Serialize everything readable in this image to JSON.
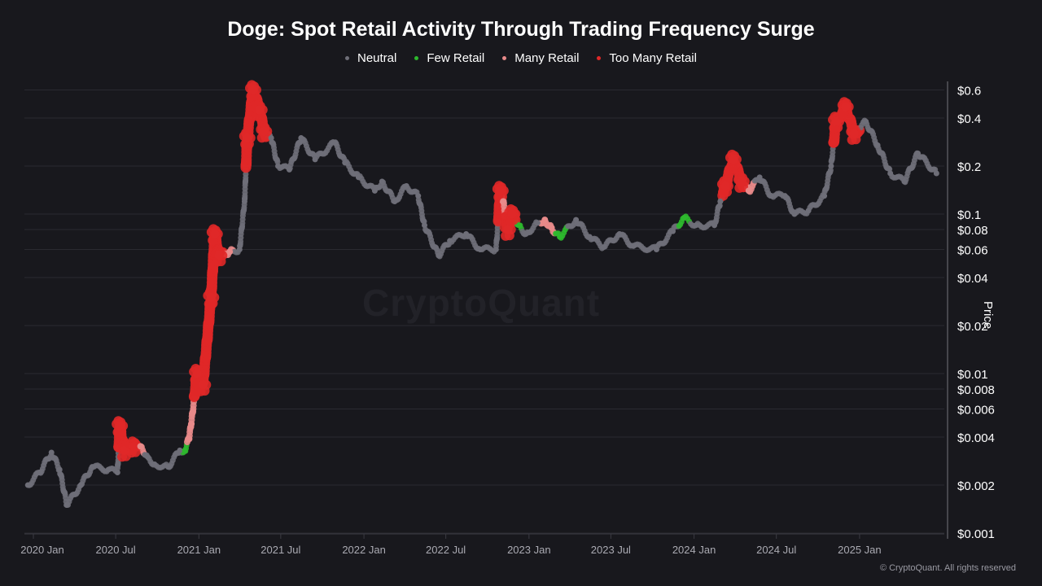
{
  "chart_data": {
    "type": "scatter",
    "title": "Doge: Spot Retail Activity Through Trading Frequency Surge",
    "ylabel": "Price",
    "xlabel": "",
    "y_scale": "log",
    "ylim": [
      0.001,
      0.65
    ],
    "xlim": [
      "2019-12-10",
      "2025-06-25"
    ],
    "grid": true,
    "legend_position": "top",
    "legend": [
      {
        "key": "neutral",
        "label": "Neutral",
        "color": "#6e6e78"
      },
      {
        "key": "few",
        "label": "Few Retail",
        "color": "#2db82d"
      },
      {
        "key": "many",
        "label": "Many Retail",
        "color": "#e88a8a"
      },
      {
        "key": "too_many",
        "label": "Too Many Retail",
        "color": "#e02828"
      }
    ],
    "y_ticks": [
      {
        "value": 0.6,
        "label": "$0.6"
      },
      {
        "value": 0.4,
        "label": "$0.4"
      },
      {
        "value": 0.2,
        "label": "$0.2"
      },
      {
        "value": 0.1,
        "label": "$0.1"
      },
      {
        "value": 0.08,
        "label": "$0.08"
      },
      {
        "value": 0.06,
        "label": "$0.06"
      },
      {
        "value": 0.04,
        "label": "$0.04"
      },
      {
        "value": 0.02,
        "label": "$0.02"
      },
      {
        "value": 0.01,
        "label": "$0.01"
      },
      {
        "value": 0.008,
        "label": "$0.008"
      },
      {
        "value": 0.006,
        "label": "$0.006"
      },
      {
        "value": 0.004,
        "label": "$0.004"
      },
      {
        "value": 0.002,
        "label": "$0.002"
      },
      {
        "value": 0.001,
        "label": "$0.001"
      }
    ],
    "x_ticks": [
      {
        "date": "2020-01-01",
        "label": "2020 Jan"
      },
      {
        "date": "2020-07-01",
        "label": "2020 Jul"
      },
      {
        "date": "2021-01-01",
        "label": "2021 Jan"
      },
      {
        "date": "2021-07-01",
        "label": "2021 Jul"
      },
      {
        "date": "2022-01-01",
        "label": "2022 Jan"
      },
      {
        "date": "2022-07-01",
        "label": "2022 Jul"
      },
      {
        "date": "2023-01-01",
        "label": "2023 Jan"
      },
      {
        "date": "2023-07-01",
        "label": "2023 Jul"
      },
      {
        "date": "2024-01-01",
        "label": "2024 Jan"
      },
      {
        "date": "2024-07-01",
        "label": "2024 Jul"
      },
      {
        "date": "2025-01-01",
        "label": "2025 Jan"
      }
    ],
    "points": [
      {
        "date": "2019-12-20",
        "price": 0.002,
        "cat": "neutral"
      },
      {
        "date": "2020-01-15",
        "price": 0.0024,
        "cat": "neutral"
      },
      {
        "date": "2020-02-10",
        "price": 0.0032,
        "cat": "neutral"
      },
      {
        "date": "2020-02-28",
        "price": 0.0025,
        "cat": "neutral"
      },
      {
        "date": "2020-03-15",
        "price": 0.0015,
        "cat": "neutral"
      },
      {
        "date": "2020-04-15",
        "price": 0.002,
        "cat": "neutral"
      },
      {
        "date": "2020-05-10",
        "price": 0.0026,
        "cat": "neutral"
      },
      {
        "date": "2020-06-15",
        "price": 0.0025,
        "cat": "neutral"
      },
      {
        "date": "2020-07-05",
        "price": 0.0024,
        "cat": "neutral"
      },
      {
        "date": "2020-07-10",
        "price": 0.0047,
        "cat": "too_many"
      },
      {
        "date": "2020-07-20",
        "price": 0.0033,
        "cat": "too_many"
      },
      {
        "date": "2020-08-10",
        "price": 0.0035,
        "cat": "too_many"
      },
      {
        "date": "2020-08-25",
        "price": 0.0035,
        "cat": "many"
      },
      {
        "date": "2020-09-10",
        "price": 0.003,
        "cat": "neutral"
      },
      {
        "date": "2020-09-25",
        "price": 0.0027,
        "cat": "neutral"
      },
      {
        "date": "2020-10-25",
        "price": 0.0026,
        "cat": "neutral"
      },
      {
        "date": "2020-11-20",
        "price": 0.0033,
        "cat": "neutral"
      },
      {
        "date": "2020-12-01",
        "price": 0.0033,
        "cat": "few"
      },
      {
        "date": "2020-12-10",
        "price": 0.0039,
        "cat": "many"
      },
      {
        "date": "2020-12-15",
        "price": 0.0048,
        "cat": "many"
      },
      {
        "date": "2020-12-28",
        "price": 0.01,
        "cat": "too_many"
      },
      {
        "date": "2021-01-10",
        "price": 0.0085,
        "cat": "too_many"
      },
      {
        "date": "2021-01-28",
        "price": 0.03,
        "cat": "too_many"
      },
      {
        "date": "2021-02-05",
        "price": 0.075,
        "cat": "too_many"
      },
      {
        "date": "2021-02-15",
        "price": 0.055,
        "cat": "too_many"
      },
      {
        "date": "2021-03-10",
        "price": 0.058,
        "cat": "many"
      },
      {
        "date": "2021-04-01",
        "price": 0.06,
        "cat": "neutral"
      },
      {
        "date": "2021-04-12",
        "price": 0.12,
        "cat": "neutral"
      },
      {
        "date": "2021-04-18",
        "price": 0.3,
        "cat": "too_many"
      },
      {
        "date": "2021-05-01",
        "price": 0.6,
        "cat": "too_many"
      },
      {
        "date": "2021-05-15",
        "price": 0.45,
        "cat": "too_many"
      },
      {
        "date": "2021-05-25",
        "price": 0.33,
        "cat": "too_many"
      },
      {
        "date": "2021-06-10",
        "price": 0.3,
        "cat": "neutral"
      },
      {
        "date": "2021-06-25",
        "price": 0.2,
        "cat": "neutral"
      },
      {
        "date": "2021-07-20",
        "price": 0.19,
        "cat": "neutral"
      },
      {
        "date": "2021-08-15",
        "price": 0.3,
        "cat": "neutral"
      },
      {
        "date": "2021-09-15",
        "price": 0.22,
        "cat": "neutral"
      },
      {
        "date": "2021-10-28",
        "price": 0.28,
        "cat": "neutral"
      },
      {
        "date": "2021-11-20",
        "price": 0.21,
        "cat": "neutral"
      },
      {
        "date": "2021-12-20",
        "price": 0.17,
        "cat": "neutral"
      },
      {
        "date": "2022-01-25",
        "price": 0.14,
        "cat": "neutral"
      },
      {
        "date": "2022-02-10",
        "price": 0.16,
        "cat": "neutral"
      },
      {
        "date": "2022-03-10",
        "price": 0.12,
        "cat": "neutral"
      },
      {
        "date": "2022-04-05",
        "price": 0.15,
        "cat": "neutral"
      },
      {
        "date": "2022-05-01",
        "price": 0.13,
        "cat": "neutral"
      },
      {
        "date": "2022-05-15",
        "price": 0.085,
        "cat": "neutral"
      },
      {
        "date": "2022-06-15",
        "price": 0.055,
        "cat": "neutral"
      },
      {
        "date": "2022-07-10",
        "price": 0.068,
        "cat": "neutral"
      },
      {
        "date": "2022-08-15",
        "price": 0.075,
        "cat": "neutral"
      },
      {
        "date": "2022-09-15",
        "price": 0.06,
        "cat": "neutral"
      },
      {
        "date": "2022-10-20",
        "price": 0.06,
        "cat": "neutral"
      },
      {
        "date": "2022-10-30",
        "price": 0.14,
        "cat": "too_many"
      },
      {
        "date": "2022-11-05",
        "price": 0.12,
        "cat": "many"
      },
      {
        "date": "2022-11-15",
        "price": 0.08,
        "cat": "too_many"
      },
      {
        "date": "2022-11-25",
        "price": 0.1,
        "cat": "too_many"
      },
      {
        "date": "2022-12-10",
        "price": 0.085,
        "cat": "few"
      },
      {
        "date": "2022-12-25",
        "price": 0.075,
        "cat": "neutral"
      },
      {
        "date": "2023-01-20",
        "price": 0.088,
        "cat": "neutral"
      },
      {
        "date": "2023-02-05",
        "price": 0.092,
        "cat": "many"
      },
      {
        "date": "2023-02-20",
        "price": 0.082,
        "cat": "many"
      },
      {
        "date": "2023-03-10",
        "price": 0.072,
        "cat": "few"
      },
      {
        "date": "2023-04-15",
        "price": 0.092,
        "cat": "neutral"
      },
      {
        "date": "2023-05-15",
        "price": 0.072,
        "cat": "neutral"
      },
      {
        "date": "2023-06-15",
        "price": 0.062,
        "cat": "neutral"
      },
      {
        "date": "2023-07-20",
        "price": 0.075,
        "cat": "neutral"
      },
      {
        "date": "2023-08-20",
        "price": 0.063,
        "cat": "neutral"
      },
      {
        "date": "2023-10-10",
        "price": 0.06,
        "cat": "neutral"
      },
      {
        "date": "2023-11-15",
        "price": 0.078,
        "cat": "neutral"
      },
      {
        "date": "2023-12-10",
        "price": 0.095,
        "cat": "few"
      },
      {
        "date": "2024-01-05",
        "price": 0.085,
        "cat": "neutral"
      },
      {
        "date": "2024-02-15",
        "price": 0.085,
        "cat": "neutral"
      },
      {
        "date": "2024-02-28",
        "price": 0.12,
        "cat": "neutral"
      },
      {
        "date": "2024-03-10",
        "price": 0.15,
        "cat": "too_many"
      },
      {
        "date": "2024-03-28",
        "price": 0.22,
        "cat": "too_many"
      },
      {
        "date": "2024-04-15",
        "price": 0.16,
        "cat": "too_many"
      },
      {
        "date": "2024-05-01",
        "price": 0.14,
        "cat": "many"
      },
      {
        "date": "2024-05-25",
        "price": 0.17,
        "cat": "neutral"
      },
      {
        "date": "2024-06-20",
        "price": 0.13,
        "cat": "neutral"
      },
      {
        "date": "2024-07-20",
        "price": 0.13,
        "cat": "neutral"
      },
      {
        "date": "2024-08-10",
        "price": 0.1,
        "cat": "neutral"
      },
      {
        "date": "2024-09-10",
        "price": 0.105,
        "cat": "neutral"
      },
      {
        "date": "2024-10-15",
        "price": 0.13,
        "cat": "neutral"
      },
      {
        "date": "2024-10-30",
        "price": 0.2,
        "cat": "neutral"
      },
      {
        "date": "2024-11-10",
        "price": 0.38,
        "cat": "too_many"
      },
      {
        "date": "2024-12-01",
        "price": 0.47,
        "cat": "too_many"
      },
      {
        "date": "2024-12-20",
        "price": 0.32,
        "cat": "too_many"
      },
      {
        "date": "2025-01-15",
        "price": 0.38,
        "cat": "neutral"
      },
      {
        "date": "2025-02-10",
        "price": 0.27,
        "cat": "neutral"
      },
      {
        "date": "2025-03-10",
        "price": 0.18,
        "cat": "neutral"
      },
      {
        "date": "2025-04-10",
        "price": 0.16,
        "cat": "neutral"
      },
      {
        "date": "2025-05-10",
        "price": 0.24,
        "cat": "neutral"
      },
      {
        "date": "2025-06-20",
        "price": 0.18,
        "cat": "neutral"
      }
    ]
  },
  "watermark": "CryptoQuant",
  "copyright": "© CryptoQuant. All rights reserved"
}
